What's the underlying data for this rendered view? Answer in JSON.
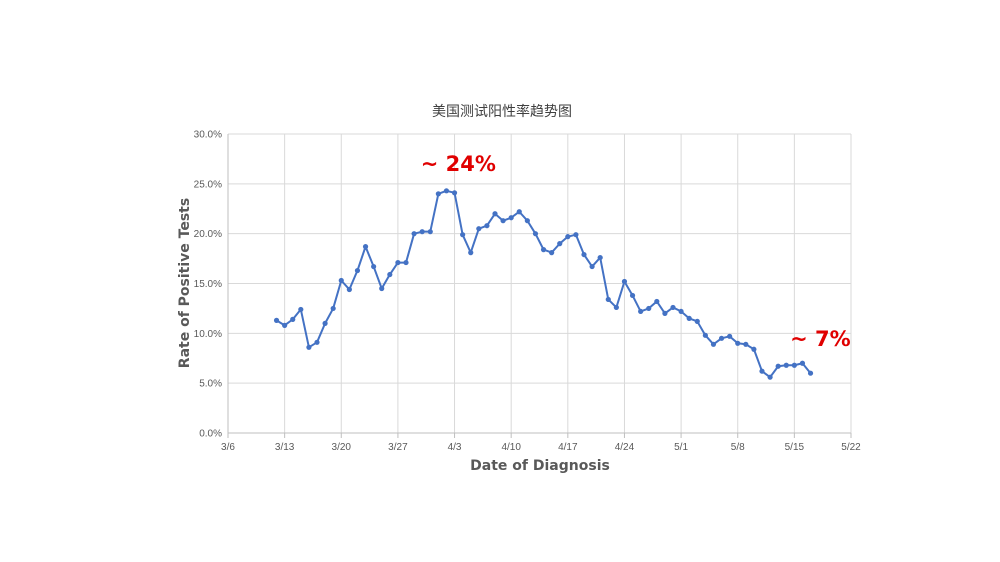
{
  "chart_data": {
    "type": "line",
    "title": "美国测试阳性率趋势图",
    "xlabel": "Date of Diagnosis",
    "ylabel": "Rate of Positive Tests",
    "x_range": [
      "3/6",
      "5/22"
    ],
    "x_ticks": [
      "3/6",
      "3/13",
      "3/20",
      "3/27",
      "4/3",
      "4/10",
      "4/17",
      "4/24",
      "5/1",
      "5/8",
      "5/15",
      "5/22"
    ],
    "ylim": [
      0,
      30
    ],
    "y_ticks": [
      "0.0%",
      "5.0%",
      "10.0%",
      "15.0%",
      "20.0%",
      "25.0%",
      "30.0%"
    ],
    "grid": true,
    "legend": "none",
    "series_color": "#4472C4",
    "series": [
      {
        "x": [
          "3/12",
          "3/13",
          "3/14",
          "3/15",
          "3/16",
          "3/17",
          "3/18",
          "3/19",
          "3/20",
          "3/21",
          "3/22",
          "3/23",
          "3/24",
          "3/25",
          "3/26",
          "3/27",
          "3/28",
          "3/29",
          "3/30",
          "3/31",
          "4/1",
          "4/2",
          "4/3",
          "4/4",
          "4/5",
          "4/6",
          "4/7",
          "4/8",
          "4/9",
          "4/10",
          "4/11",
          "4/12",
          "4/13",
          "4/14",
          "4/15",
          "4/16",
          "4/17",
          "4/18",
          "4/19",
          "4/20",
          "4/21",
          "4/22",
          "4/23",
          "4/24",
          "4/25",
          "4/26",
          "4/27",
          "4/28",
          "4/29",
          "4/30",
          "5/1",
          "5/2",
          "5/3",
          "5/4",
          "5/5",
          "5/6",
          "5/7",
          "5/8",
          "5/9",
          "5/10",
          "5/11",
          "5/12",
          "5/13",
          "5/14",
          "5/15",
          "5/16",
          "5/17"
        ],
        "values": [
          11.3,
          10.8,
          11.4,
          12.4,
          8.6,
          9.1,
          11.0,
          12.5,
          15.3,
          14.4,
          16.3,
          18.7,
          16.7,
          14.5,
          15.9,
          17.1,
          17.1,
          20.0,
          20.2,
          20.2,
          24.0,
          24.3,
          24.1,
          19.9,
          18.1,
          20.5,
          20.8,
          22.0,
          21.3,
          21.6,
          22.2,
          21.3,
          20.0,
          18.4,
          18.1,
          19.0,
          19.7,
          19.9,
          17.9,
          16.7,
          17.6,
          13.4,
          12.6,
          15.2,
          13.8,
          12.2,
          12.5,
          13.2,
          12.0,
          12.6,
          12.2,
          11.5,
          11.2,
          9.8,
          8.9,
          9.5,
          9.7,
          9.0,
          8.9,
          8.4,
          6.2,
          5.6,
          6.7,
          6.8,
          6.8,
          7.0,
          6.0
        ]
      }
    ],
    "annotations": [
      {
        "text": "~ 24%",
        "x": "4/1",
        "y": 24.3,
        "color": "#E00000"
      },
      {
        "text": "~ 7%",
        "x": "5/15",
        "y": 7.0,
        "color": "#E00000"
      }
    ]
  }
}
